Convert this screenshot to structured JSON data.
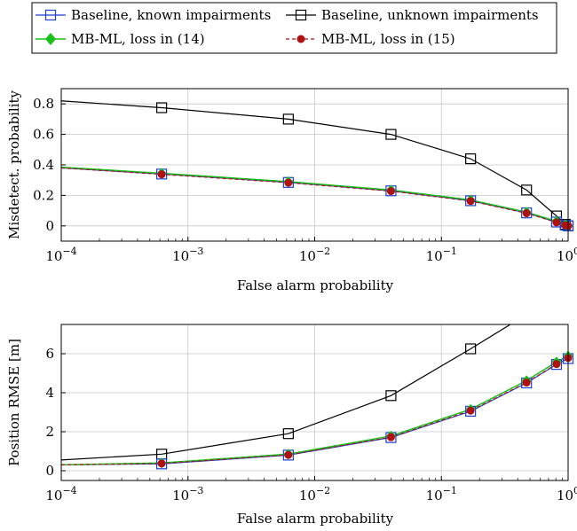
{
  "legend": {
    "items": [
      {
        "label": "Baseline, known impairments",
        "color": "#1f3fd1",
        "marker": "square",
        "line": "solid"
      },
      {
        "label": "Baseline, unknown impairments",
        "color": "#000000",
        "marker": "square",
        "line": "solid"
      },
      {
        "label": "MB-ML, loss in (14)",
        "color": "#19c019",
        "marker": "diamond",
        "line": "solid"
      },
      {
        "label": "MB-ML, loss in (15)",
        "color": "#b01010",
        "marker": "circle",
        "line": "dashed"
      }
    ]
  },
  "chart_data": [
    {
      "type": "line",
      "x_scale": "log",
      "xlabel": "False alarm probability",
      "ylabel": "Misdetect. probability",
      "xlim": [
        0.0001,
        1
      ],
      "ylim": [
        -0.1,
        0.9
      ],
      "xticks": [
        "10^-4",
        "10^-3",
        "10^-2",
        "10^-1",
        "10^0"
      ],
      "yticks": [
        "0",
        "0.2",
        "0.4",
        "0.6",
        "0.8"
      ],
      "ytick_values": [
        0,
        0.2,
        0.4,
        0.6,
        0.8
      ],
      "grid": true,
      "series": [
        {
          "name": "Baseline, known impairments",
          "line_start": [
            0.0001,
            0.38
          ],
          "x": [
            0.00062,
            0.0062,
            0.04,
            0.17,
            0.47,
            0.81,
            0.95,
            1.0
          ],
          "y": [
            0.34,
            0.285,
            0.23,
            0.165,
            0.085,
            0.025,
            0.005,
            0.0
          ]
        },
        {
          "name": "Baseline, unknown impairments",
          "line_start": [
            0.0001,
            0.82
          ],
          "x": [
            0.00062,
            0.0062,
            0.04,
            0.17,
            0.47,
            0.81,
            0.95,
            1.0
          ],
          "y": [
            0.775,
            0.7,
            0.6,
            0.44,
            0.235,
            0.065,
            0.01,
            0.0
          ]
        },
        {
          "name": "MB-ML, loss in (14)",
          "line_start": [
            0.0001,
            0.385
          ],
          "x": [
            0.00062,
            0.0062,
            0.04,
            0.17,
            0.47,
            0.81,
            0.95,
            1.0
          ],
          "y": [
            0.345,
            0.29,
            0.235,
            0.17,
            0.09,
            0.03,
            0.008,
            0.0
          ]
        },
        {
          "name": "MB-ML, loss in (15)",
          "line_start": [
            0.0001,
            0.38
          ],
          "x": [
            0.00062,
            0.0062,
            0.04,
            0.17,
            0.47,
            0.81,
            0.95,
            1.0
          ],
          "y": [
            0.338,
            0.283,
            0.228,
            0.163,
            0.083,
            0.023,
            0.004,
            0.0
          ]
        }
      ]
    },
    {
      "type": "line",
      "x_scale": "log",
      "xlabel": "False alarm probability",
      "ylabel": "Position RMSE [m]",
      "xlim": [
        0.0001,
        1
      ],
      "ylim": [
        -0.5,
        7.5
      ],
      "xticks": [
        "10^-4",
        "10^-3",
        "10^-2",
        "10^-1",
        "10^0"
      ],
      "yticks": [
        "0",
        "2",
        "4",
        "6"
      ],
      "ytick_values": [
        0,
        2,
        4,
        6
      ],
      "grid": true,
      "series": [
        {
          "name": "Baseline, known impairments",
          "line_start": [
            0.0001,
            0.3
          ],
          "x": [
            0.00062,
            0.0062,
            0.04,
            0.17,
            0.47,
            0.81,
            1.0
          ],
          "y": [
            0.35,
            0.8,
            1.7,
            3.05,
            4.5,
            5.45,
            5.75
          ]
        },
        {
          "name": "Baseline, unknown impairments",
          "line_start": [
            0.0001,
            0.55
          ],
          "line_end": [
            0.35,
            7.5
          ],
          "x": [
            0.00062,
            0.0062,
            0.04,
            0.17
          ],
          "y": [
            0.85,
            1.9,
            3.85,
            6.25
          ]
        },
        {
          "name": "MB-ML, loss in (14)",
          "line_start": [
            0.0001,
            0.3
          ],
          "x": [
            0.00062,
            0.0062,
            0.04,
            0.17,
            0.47,
            0.81,
            1.0
          ],
          "y": [
            0.4,
            0.85,
            1.78,
            3.15,
            4.62,
            5.58,
            5.88
          ]
        },
        {
          "name": "MB-ML, loss in (15)",
          "line_start": [
            0.0001,
            0.3
          ],
          "x": [
            0.00062,
            0.0062,
            0.04,
            0.17,
            0.47,
            0.81,
            1.0
          ],
          "y": [
            0.37,
            0.81,
            1.72,
            3.08,
            4.52,
            5.47,
            5.78
          ]
        }
      ]
    }
  ]
}
